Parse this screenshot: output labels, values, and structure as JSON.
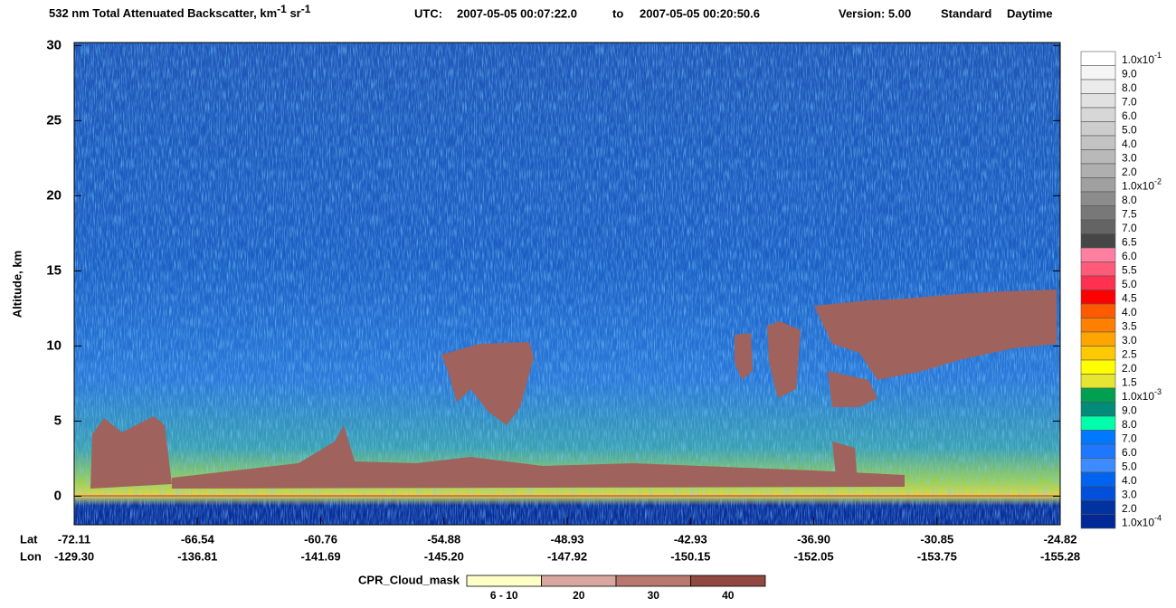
{
  "title": {
    "main": "532 nm Total Attenuated Backscatter, km",
    "sup1": "-1",
    "mid": " sr",
    "sup2": "-1",
    "utc_label": "UTC:",
    "utc_start": "2007-05-05 00:07:22.0",
    "utc_to": "to",
    "utc_end": "2007-05-05 00:20:50.6",
    "version": "Version: 5.00",
    "product": "Standard",
    "daytime": "Daytime"
  },
  "y_axis": {
    "label": "Altitude, km",
    "ylim": [
      -1.9,
      30.2
    ],
    "yticks": [
      0,
      5,
      10,
      15,
      20,
      25,
      30
    ]
  },
  "x_axis": {
    "row_labels": [
      "Lat",
      "Lon"
    ],
    "ticks": [
      {
        "lat": "-72.11",
        "lon": "-129.30"
      },
      {
        "lat": "-66.54",
        "lon": "-136.81"
      },
      {
        "lat": "-60.76",
        "lon": "-141.69"
      },
      {
        "lat": "-54.88",
        "lon": "-145.20"
      },
      {
        "lat": "-48.93",
        "lon": "-147.92"
      },
      {
        "lat": "-42.93",
        "lon": "-150.15"
      },
      {
        "lat": "-36.90",
        "lon": "-152.05"
      },
      {
        "lat": "-30.85",
        "lon": "-153.75"
      },
      {
        "lat": "-24.82",
        "lon": "-155.28"
      }
    ]
  },
  "colorbar": [
    {
      "label": "1.0x10",
      "sup": "-1",
      "color": "#ffffff"
    },
    {
      "label": "9.0",
      "color": "#f5f5f5"
    },
    {
      "label": "8.0",
      "color": "#ebebeb"
    },
    {
      "label": "7.0",
      "color": "#e1e1e1"
    },
    {
      "label": "6.0",
      "color": "#d7d7d7"
    },
    {
      "label": "5.0",
      "color": "#cdcdcd"
    },
    {
      "label": "4.0",
      "color": "#c3c3c3"
    },
    {
      "label": "3.0",
      "color": "#b9b9b9"
    },
    {
      "label": "2.0",
      "color": "#afafaf"
    },
    {
      "label": "1.0x10",
      "sup": "-2",
      "color": "#a0a0a0"
    },
    {
      "label": "8.0",
      "color": "#8c8c8c"
    },
    {
      "label": "7.5",
      "color": "#787878"
    },
    {
      "label": "7.0",
      "color": "#646464"
    },
    {
      "label": "6.5",
      "color": "#464646"
    },
    {
      "label": "6.0",
      "color": "#ff7fa0"
    },
    {
      "label": "5.5",
      "color": "#ff5a78"
    },
    {
      "label": "5.0",
      "color": "#ff3050"
    },
    {
      "label": "4.5",
      "color": "#ff0000"
    },
    {
      "label": "4.0",
      "color": "#ff5a00"
    },
    {
      "label": "3.5",
      "color": "#ff7f00"
    },
    {
      "label": "3.0",
      "color": "#ffa500"
    },
    {
      "label": "2.5",
      "color": "#ffc800"
    },
    {
      "label": "2.0",
      "color": "#ffff00"
    },
    {
      "label": "1.5",
      "color": "#e6e632"
    },
    {
      "label": "1.0x10",
      "sup": "-3",
      "color": "#00a050"
    },
    {
      "label": "9.0",
      "color": "#008c78"
    },
    {
      "label": "8.0",
      "color": "#00ffaa"
    },
    {
      "label": "7.0",
      "color": "#0078ff"
    },
    {
      "label": "6.0",
      "color": "#1e78ff"
    },
    {
      "label": "5.0",
      "color": "#3c8cff"
    },
    {
      "label": "4.0",
      "color": "#0064f0"
    },
    {
      "label": "3.0",
      "color": "#0050dc"
    },
    {
      "label": "2.0",
      "color": "#0032a0"
    },
    {
      "label": "1.0x10",
      "sup": "-4",
      "color": "#002896"
    }
  ],
  "cpr_legend": {
    "title": "CPR_Cloud_mask",
    "items": [
      {
        "label": "6 - 10",
        "color": "#ffffc8"
      },
      {
        "label": "20",
        "color": "#d8a8a0"
      },
      {
        "label": "30",
        "color": "#b87870"
      },
      {
        "label": "40",
        "color": "#904840"
      }
    ]
  }
}
